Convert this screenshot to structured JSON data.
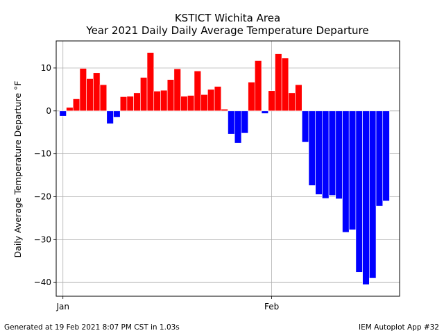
{
  "chart_data": {
    "type": "bar",
    "title": "KSTICT Wichita Area",
    "subtitle": "Year 2021 Daily Daily Average Temperature Departure",
    "xlabel": "",
    "ylabel": "Daily Average Temperature Departure  °F",
    "ylim": [
      -43.2,
      16.3
    ],
    "yticks": [
      10,
      0,
      -10,
      -20,
      -30,
      -40
    ],
    "ytick_labels": [
      "10",
      "0",
      "−10",
      "−20",
      "−30",
      "−40"
    ],
    "xticks": [
      {
        "date": "2021-01-01",
        "label": "Jan"
      },
      {
        "date": "2021-02-01",
        "label": "Feb"
      }
    ],
    "xlim": [
      "2020-12-31",
      "2021-02-20"
    ],
    "grid": true,
    "positive_color": "#ff0000",
    "negative_color": "#0000ff",
    "series": [
      {
        "dates": [
          "2021-01-01",
          "2021-01-02",
          "2021-01-03",
          "2021-01-04",
          "2021-01-05",
          "2021-01-06",
          "2021-01-07",
          "2021-01-08",
          "2021-01-09",
          "2021-01-10",
          "2021-01-11",
          "2021-01-12",
          "2021-01-13",
          "2021-01-14",
          "2021-01-15",
          "2021-01-16",
          "2021-01-17",
          "2021-01-18",
          "2021-01-19",
          "2021-01-20",
          "2021-01-21",
          "2021-01-22",
          "2021-01-23",
          "2021-01-24",
          "2021-01-25",
          "2021-01-26",
          "2021-01-27",
          "2021-01-28",
          "2021-01-29",
          "2021-01-30",
          "2021-01-31",
          "2021-02-01",
          "2021-02-02",
          "2021-02-03",
          "2021-02-04",
          "2021-02-05",
          "2021-02-06",
          "2021-02-07",
          "2021-02-08",
          "2021-02-09",
          "2021-02-10",
          "2021-02-11",
          "2021-02-12",
          "2021-02-13",
          "2021-02-14",
          "2021-02-15",
          "2021-02-16",
          "2021-02-17",
          "2021-02-18",
          "2021-02-19"
        ],
        "values": [
          -1.2,
          0.8,
          2.8,
          9.9,
          7.5,
          8.9,
          6.1,
          -3.0,
          -1.5,
          3.3,
          3.4,
          4.2,
          7.8,
          13.6,
          4.6,
          4.8,
          7.3,
          9.8,
          3.4,
          3.6,
          9.3,
          3.8,
          5.0,
          5.7,
          0.4,
          -5.4,
          -7.5,
          -5.2,
          6.7,
          11.7,
          -0.6,
          4.7,
          13.3,
          12.3,
          4.2,
          6.1,
          -7.3,
          -17.4,
          -19.5,
          -20.4,
          -19.7,
          -20.5,
          -28.3,
          -27.7,
          -37.6,
          -40.5,
          -39.0,
          -22.2,
          -21.0,
          0
        ]
      }
    ]
  },
  "footer": {
    "left": "Generated at 19 Feb 2021 8:07 PM CST in 1.03s",
    "right": "IEM Autoplot App #32"
  }
}
